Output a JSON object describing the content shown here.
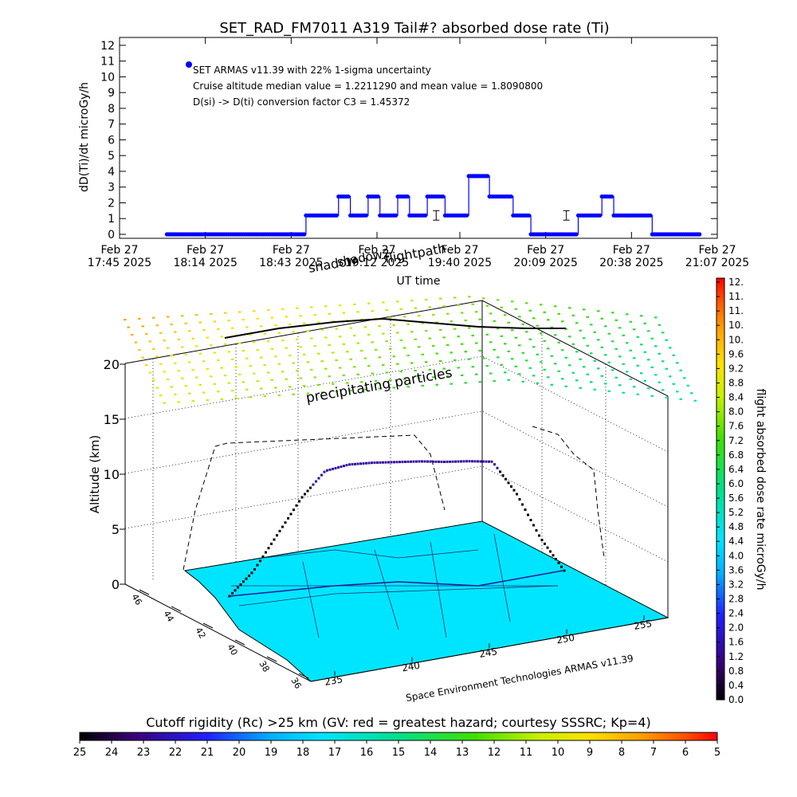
{
  "chart_data": [
    {
      "type": "line",
      "title": "SET_RAD_FM7011  A319 Tail#? absorbed dose rate (Ti)",
      "ylabel": "dD(Ti)/dt microGy/h",
      "xlabel": "UT time",
      "ylim": [
        0,
        12
      ],
      "yticks": [
        "0",
        "1",
        "2",
        "3",
        "4",
        "5",
        "6",
        "7",
        "8",
        "9",
        "10",
        "11",
        "12"
      ],
      "xlim_minutes": [
        0,
        202
      ],
      "xticks": [
        {
          "date": "Feb 27",
          "time": "17:45 2025",
          "t": 0
        },
        {
          "date": "Feb 27",
          "time": "18:14 2025",
          "t": 29
        },
        {
          "date": "Feb 27",
          "time": "18:43 2025",
          "t": 58
        },
        {
          "date": "Feb 27",
          "time": "19:12 2025",
          "t": 87
        },
        {
          "date": "Feb 27",
          "time": "19:40 2025",
          "t": 115
        },
        {
          "date": "Feb 27",
          "time": "20:09 2025",
          "t": 144
        },
        {
          "date": "Feb 27",
          "time": "20:38 2025",
          "t": 173
        },
        {
          "date": "Feb 27",
          "time": "21:07 2025",
          "t": 202
        }
      ],
      "legend": [
        "SET ARMAS v11.39 with 22% 1-sigma uncertainty",
        "Cruise altitude median value = 1.2211290 and mean value = 1.8090800",
        "D(si) -> D(ti) conversion factor C3 = 1.45372"
      ],
      "series_color": "#0000ff",
      "series": [
        {
          "x": [
            16,
            20,
            25,
            30,
            35,
            40,
            45,
            50,
            55,
            60,
            63,
            65,
            68,
            70,
            72,
            74,
            76,
            78,
            80,
            82,
            84,
            86,
            88,
            90,
            92,
            94,
            96,
            98,
            100,
            102,
            104,
            106,
            108,
            110,
            112,
            114,
            116,
            118,
            120,
            121,
            123,
            125,
            127,
            129,
            131,
            133,
            135,
            137,
            139,
            141,
            143,
            145,
            147,
            149,
            151,
            153,
            155,
            157,
            159,
            161,
            163,
            165,
            167,
            169,
            171,
            172,
            175,
            180,
            185,
            190,
            195,
            196
          ],
          "values": [
            0,
            0,
            0,
            0,
            0,
            0,
            0,
            0,
            0,
            0,
            1.2,
            1.2,
            1.2,
            1.2,
            1.2,
            2.4,
            2.4,
            1.2,
            1.2,
            1.2,
            2.4,
            2.4,
            1.2,
            1.2,
            1.2,
            2.4,
            2.4,
            1.2,
            1.2,
            1.2,
            2.4,
            2.4,
            2.4,
            1.2,
            1.2,
            1.2,
            1.2,
            3.7,
            3.7,
            3.7,
            3.7,
            2.4,
            2.4,
            2.4,
            2.4,
            1.2,
            1.2,
            1.2,
            0,
            0,
            0,
            0,
            0,
            0,
            0,
            0,
            1.2,
            1.2,
            1.2,
            1.2,
            2.4,
            2.4,
            1.2,
            1.2,
            1.2,
            1.2,
            1.2,
            0,
            0,
            0,
            0,
            0
          ],
          "error_bars": [
            {
              "x": 107,
              "y": 1.2,
              "err": 0.3
            },
            {
              "x": 151,
              "y": 1.2,
              "err": 0.3
            }
          ]
        }
      ]
    },
    {
      "type": "scatter",
      "title": "",
      "zlabel": "Altitude (km)",
      "zticks": [
        "0",
        "5",
        "10",
        "15",
        "20"
      ],
      "lat_ticks": [
        "46",
        "44",
        "42",
        "40",
        "38",
        "36"
      ],
      "lon_ticks": [
        "235",
        "240",
        "245",
        "250",
        "255"
      ],
      "annotations": [
        "shadow",
        "flightpath",
        "shadow2",
        "precipitating particles"
      ],
      "credit": "Space Environment Technologies ARMAS v11.39",
      "colorbar_label": "flight absorbed dose rate microGy/h",
      "colorbar_ticks": [
        "12.",
        "11.",
        "11.",
        "10.",
        "10.",
        "9.6",
        "9.2",
        "8.8",
        "8.4",
        "8.0",
        "7.6",
        "7.2",
        "6.8",
        "6.4",
        "6.0",
        "5.6",
        "5.2",
        "4.8",
        "4.4",
        "4.0",
        "3.6",
        "3.2",
        "2.8",
        "2.4",
        "2.0",
        "1.6",
        "1.2",
        "0.8",
        "0.4",
        "0.0"
      ],
      "flight_altitude_km": [
        0,
        2,
        5,
        8,
        10.2,
        10.6,
        10.6,
        10.5,
        10.4,
        10.2,
        10.1,
        9.9,
        7,
        3,
        0
      ],
      "bottom_colorbar_label": "Cutoff rigidity (Rc) >25 km (GV: red = greatest hazard; courtesy SSSRC; Kp=4)",
      "bottom_colorbar_ticks": [
        "25",
        "24",
        "23",
        "22",
        "21",
        "20",
        "19",
        "18",
        "17",
        "16",
        "15",
        "14",
        "13",
        "12",
        "11",
        "10",
        "9",
        "8",
        "7",
        "6",
        "5"
      ]
    }
  ],
  "colors": {
    "frame": "#000000",
    "map_fill": "#00e5ff",
    "series": "#0000ff"
  }
}
